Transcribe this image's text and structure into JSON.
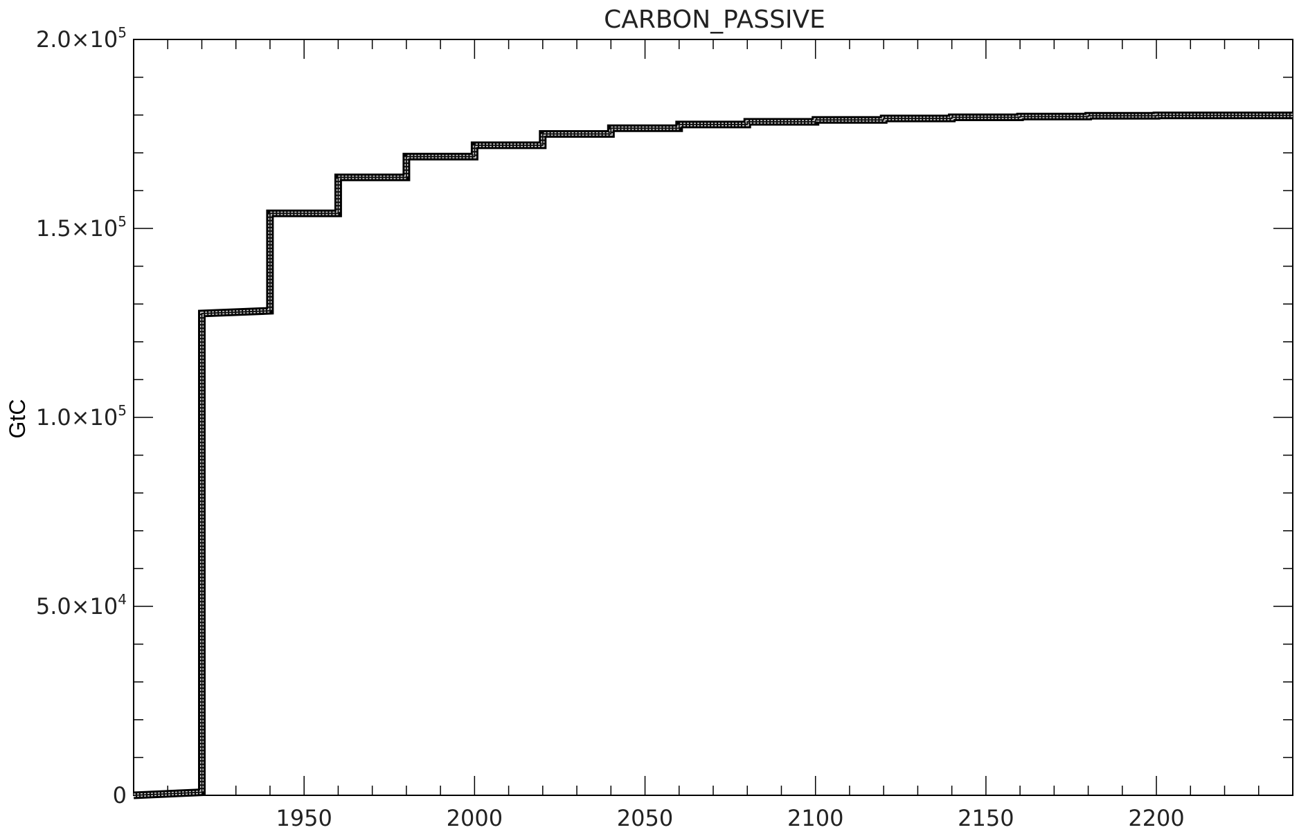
{
  "chart_data": {
    "type": "line",
    "title": "CARBON_PASSIVE",
    "xlabel": "",
    "ylabel": "GtC",
    "xlim": [
      1900,
      2240
    ],
    "ylim": [
      0,
      200000
    ],
    "x_ticks": [
      1950,
      2000,
      2050,
      2100,
      2150,
      2200
    ],
    "y_ticks": [
      {
        "value": 0,
        "mantissa": "0",
        "exp": ""
      },
      {
        "value": 50000,
        "mantissa": "5.0×10",
        "exp": "4"
      },
      {
        "value": 100000,
        "mantissa": "1.0×10",
        "exp": "5"
      },
      {
        "value": 150000,
        "mantissa": "1.5×10",
        "exp": "5"
      },
      {
        "value": 200000,
        "mantissa": "2.0×10",
        "exp": "5"
      }
    ],
    "grid": false,
    "series": [
      {
        "x": [
          1900,
          1920,
          1920,
          1940,
          1940,
          1960,
          1960,
          1980,
          1980,
          2000,
          2000,
          2020,
          2020,
          2040,
          2040,
          2060,
          2060,
          2080,
          2080,
          2100,
          2100,
          2120,
          2120,
          2140,
          2140,
          2160,
          2160,
          2180,
          2180,
          2200,
          2200,
          2240
        ],
        "y": [
          0,
          800,
          127500,
          128200,
          154000,
          154000,
          163500,
          163500,
          169000,
          169000,
          172000,
          172000,
          175000,
          175000,
          176500,
          176500,
          177500,
          177500,
          178200,
          178200,
          178700,
          178700,
          179100,
          179100,
          179400,
          179400,
          179600,
          179600,
          179800,
          179800,
          179900,
          179900
        ]
      }
    ]
  }
}
